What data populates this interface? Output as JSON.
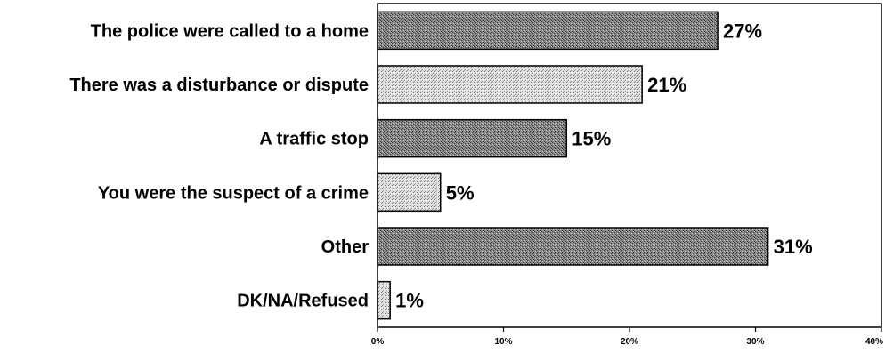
{
  "chart_data": {
    "type": "bar",
    "orientation": "horizontal",
    "categories": [
      "The police were called to a home",
      "There was a disturbance or dispute",
      "A traffic stop",
      "You were the suspect of a crime",
      "Other",
      "DK/NA/Refused"
    ],
    "values": [
      27,
      21,
      15,
      5,
      31,
      1
    ],
    "value_labels": [
      "27%",
      "21%",
      "15%",
      "5%",
      "31%",
      "1%"
    ],
    "xlim": [
      0,
      40
    ],
    "x_ticks": [
      0,
      10,
      20,
      30,
      40
    ],
    "x_tick_labels": [
      "0%",
      "10%",
      "20%",
      "30%",
      "40%"
    ],
    "title": "",
    "xlabel": "",
    "ylabel": "",
    "grid": false,
    "legend": "none"
  },
  "colors": {
    "dark_bar": "#6e6e6e",
    "light_bar": "#cdcdcd",
    "bar_outline": "#000000",
    "frame": "#000000"
  }
}
